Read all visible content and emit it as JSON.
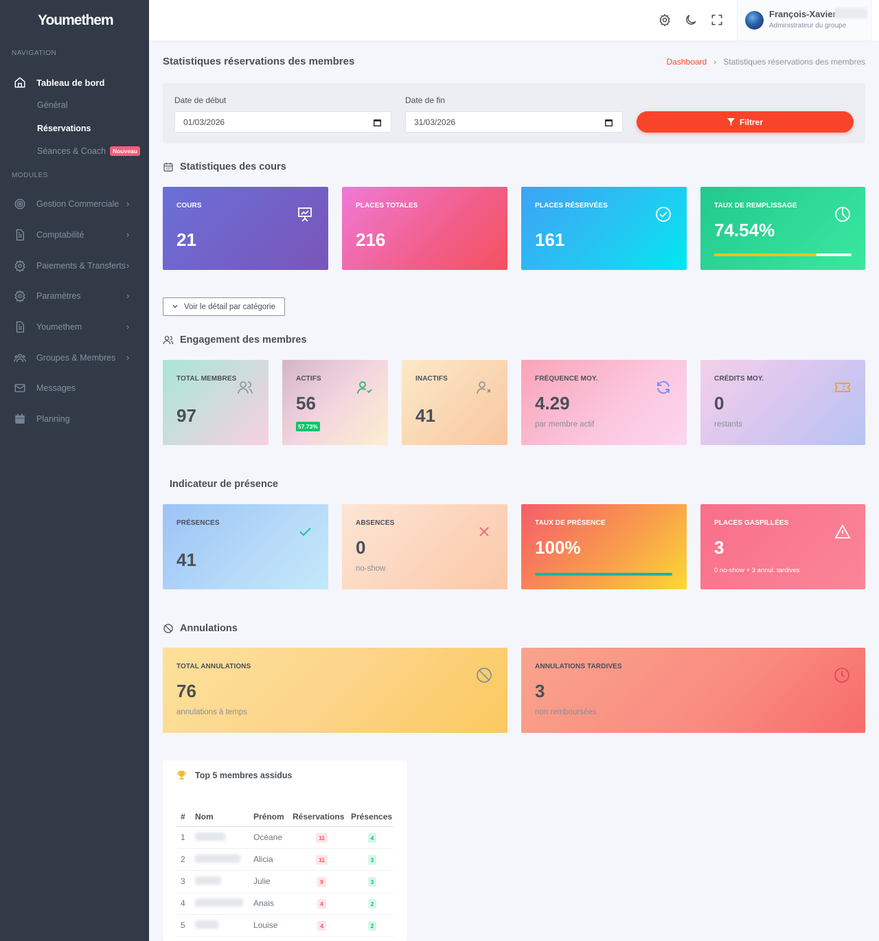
{
  "app": {
    "logo": "Youmethem"
  },
  "sidebar": {
    "nav_heading": "NAVIGATION",
    "main_item": "Tableau de bord",
    "sub_items": [
      {
        "label": "Général"
      },
      {
        "label": "Réservations"
      },
      {
        "label": "Séances & Coach",
        "badge": "Nouveau"
      }
    ],
    "modules_heading": "MODULES",
    "modules": [
      {
        "label": "Gestion Commerciale",
        "icon": "target-icon"
      },
      {
        "label": "Comptabilité",
        "icon": "document-icon"
      },
      {
        "label": "Paiements & Transferts",
        "icon": "gear-icon"
      },
      {
        "label": "Paramètres",
        "icon": "gear-icon"
      },
      {
        "label": "Youmethem",
        "icon": "document-icon"
      },
      {
        "label": "Groupes & Membres",
        "icon": "users-icon"
      },
      {
        "label": "Messages",
        "icon": "mail-icon"
      },
      {
        "label": "Planning",
        "icon": "calendar-icon"
      }
    ]
  },
  "topbar": {
    "user_name": "François-Xavier",
    "user_role": "Administrateur du groupe"
  },
  "page": {
    "title": "Statistiques réservations des membres",
    "breadcrumb_root": "Dashboard",
    "breadcrumb_current": "Statistiques réservations des membres"
  },
  "filters": {
    "start_label": "Date de début",
    "start_value": "01/03/2026",
    "end_label": "Date de fin",
    "end_value": "31/03/2026",
    "button_label": "Filtrer"
  },
  "courses": {
    "title": "Statistiques des cours",
    "cards": [
      {
        "label": "COURS",
        "value": "21",
        "icon": "presentation-icon"
      },
      {
        "label": "PLACES TOTALES",
        "value": "216"
      },
      {
        "label": "PLACES RÉSERVÉES",
        "value": "161",
        "icon": "check-circle-icon"
      },
      {
        "label": "TAUX DE REMPLISSAGE",
        "value": "74.54%",
        "progress": 0.7454,
        "icon": "pie-icon"
      }
    ],
    "detail_toggle": "Voir le détail par catégorie"
  },
  "engagement": {
    "title": "Engagement des membres",
    "cards": [
      {
        "label": "TOTAL MEMBRES",
        "value": "97",
        "icon": "users-icon"
      },
      {
        "label": "ACTIFS",
        "value": "56",
        "badge": "57.73%",
        "icon": "user-check-icon"
      },
      {
        "label": "INACTIFS",
        "value": "41",
        "icon": "user-x-icon"
      },
      {
        "label": "FRÉQUENCE MOY.",
        "value": "4.29",
        "sub": "par membre actif",
        "icon": "refresh-icon"
      },
      {
        "label": "CRÉDITS MOY.",
        "value": "0",
        "sub": "restants",
        "icon": "ticket-icon"
      }
    ]
  },
  "presence": {
    "title": "Indicateur de présence",
    "cards": [
      {
        "label": "PRÉSENCES",
        "value": "41",
        "icon": "check-icon"
      },
      {
        "label": "ABSENCES",
        "value": "0",
        "sub": "no-show",
        "icon": "close-icon"
      },
      {
        "label": "TAUX DE PRÉSENCE",
        "value": "100%",
        "progress": 1.0
      },
      {
        "label": "PLACES GASPILLÉES",
        "value": "3",
        "sub": "0 no-show + 3 annul. tardives",
        "icon": "warning-icon"
      }
    ]
  },
  "cancellations": {
    "title": "Annulations",
    "cards": [
      {
        "label": "TOTAL ANNULATIONS",
        "value": "76",
        "sub": "annulations à temps",
        "icon": "ban-icon"
      },
      {
        "label": "ANNULATIONS TARDIVES",
        "value": "3",
        "sub": "non remboursées",
        "icon": "clock-icon"
      }
    ]
  },
  "top_members": {
    "title": "Top 5 membres assidus",
    "columns": [
      "#",
      "Nom",
      "Prénom",
      "Réservations",
      "Présences"
    ],
    "rows": [
      {
        "rank": "1",
        "prenom": "Océane",
        "reservations": "11",
        "presences": "4"
      },
      {
        "rank": "2",
        "prenom": "Alicia",
        "reservations": "11",
        "presences": "3"
      },
      {
        "rank": "3",
        "prenom": "Julie",
        "reservations": "9",
        "presences": "3"
      },
      {
        "rank": "4",
        "prenom": "Anais",
        "reservations": "4",
        "presences": "2"
      },
      {
        "rank": "5",
        "prenom": "Louise",
        "reservations": "4",
        "presences": "2"
      }
    ]
  },
  "colors": {
    "accent": "#fa4429",
    "sidebar_bg": "#313a46",
    "success": "#10c469",
    "danger": "#f1556c"
  }
}
